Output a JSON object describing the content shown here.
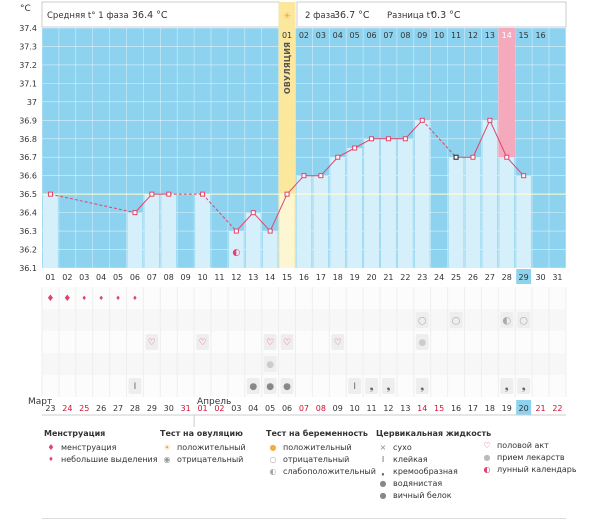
{
  "header": {
    "unit": "°C",
    "phase1_label": "Средняя t° 1 фаза",
    "phase1_value": "36.4 °C",
    "phase2_label": "2 фаза",
    "phase2_value": "36.7 °C",
    "diff_label": "Разница t°",
    "diff_value": "0.3 °C"
  },
  "ovulation_label": "ОВУЛЯЦИЯ",
  "cycle_days_top": [
    "01",
    "02",
    "03",
    "04",
    "05",
    "06",
    "07",
    "08",
    "09",
    "10",
    "11",
    "12",
    "13",
    "14",
    "15",
    "16"
  ],
  "months": {
    "march": "Март",
    "april": "Апрель"
  },
  "chart_data": {
    "type": "bar",
    "x": [
      "01",
      "02",
      "03",
      "04",
      "05",
      "06",
      "07",
      "08",
      "09",
      "10",
      "11",
      "12",
      "13",
      "14",
      "15",
      "16",
      "17",
      "18",
      "19",
      "20",
      "21",
      "22",
      "23",
      "24",
      "25",
      "26",
      "27",
      "28",
      "29",
      "30",
      "31"
    ],
    "values": [
      36.5,
      null,
      null,
      null,
      null,
      36.4,
      36.5,
      36.5,
      null,
      36.5,
      null,
      36.3,
      36.4,
      36.3,
      36.5,
      36.6,
      36.6,
      36.7,
      36.75,
      36.8,
      36.8,
      36.8,
      36.9,
      null,
      36.7,
      36.7,
      36.9,
      36.7,
      36.6,
      null,
      null
    ],
    "ylim": [
      36.1,
      37.4
    ],
    "yticks": [
      "36.1",
      "36.2",
      "36.3",
      "36.4",
      "36.5",
      "36.6",
      "36.7",
      "36.8",
      "36.9",
      "37",
      "37.1",
      "37.2",
      "37.3",
      "37.4"
    ],
    "ylabel": "°C",
    "coverline": 36.5,
    "ovulation_day": "15",
    "highlight_day": "29",
    "menses_day": "28",
    "grid": true
  },
  "calendar_dates": [
    "23",
    "24",
    "25",
    "26",
    "27",
    "28",
    "29",
    "30",
    "31",
    "01",
    "02",
    "03",
    "04",
    "05",
    "06",
    "07",
    "08",
    "09",
    "10",
    "11",
    "12",
    "13",
    "14",
    "15",
    "16",
    "17",
    "18",
    "19",
    "20",
    "21",
    "22"
  ],
  "weekend_dates": [
    1,
    2,
    8,
    9,
    10,
    15,
    16,
    22,
    23,
    29,
    30
  ],
  "legend": {
    "menstruation": {
      "title": "Менструация",
      "items": [
        "менструация",
        "небольшие выделения"
      ]
    },
    "ovulation_test": {
      "title": "Тест на овуляцию",
      "items": [
        "положительный",
        "отрицательный"
      ]
    },
    "pregnancy_test": {
      "title": "Тест на беременность",
      "items": [
        "положительный",
        "отрицательный",
        "слабоположительный"
      ]
    },
    "cervical_fluid": {
      "title": "Цервикальная жидкость",
      "items": [
        "сухо",
        "клейкая",
        "кремообразная",
        "водянистая",
        "вичный белок"
      ]
    },
    "other": {
      "items": [
        "половой акт",
        "прием лекарств",
        "лунный календарь"
      ]
    }
  },
  "colors": {
    "sky": "#8dd3ef",
    "bar": "#d6f0fb",
    "bar_edge": "#8dd3ef",
    "ovulation": "#fbe89c",
    "menses": "#f4a9bd",
    "line": "#e0446b",
    "grid_blue": "#b6e3f5"
  }
}
